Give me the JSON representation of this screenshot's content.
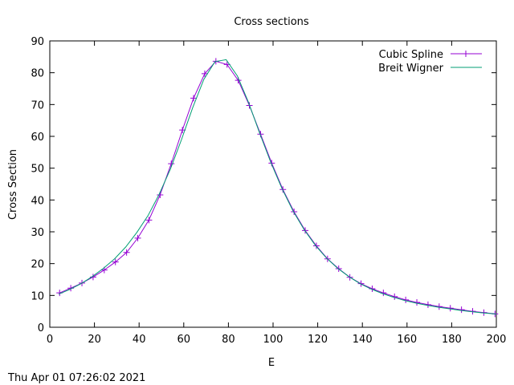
{
  "chart_data": {
    "type": "line",
    "title": "Cross sections",
    "xlabel": "E",
    "ylabel": "Cross Section",
    "xlim": [
      0,
      200
    ],
    "ylim": [
      0,
      90
    ],
    "xticks": [
      0,
      20,
      40,
      60,
      80,
      100,
      120,
      140,
      160,
      180,
      200
    ],
    "yticks": [
      0,
      10,
      20,
      30,
      40,
      50,
      60,
      70,
      80,
      90
    ],
    "grid": false,
    "legend_position": "top-right",
    "series": [
      {
        "name": "Cubic Spline",
        "color": "#9400d3",
        "marker": "plus",
        "x": [
          4.4,
          9.4,
          14.4,
          19.4,
          24.4,
          29.4,
          34.4,
          39.4,
          44.4,
          49.4,
          54.4,
          59.4,
          64.4,
          69.4,
          74.4,
          79.4,
          84.4,
          89.4,
          94.4,
          99.4,
          104.4,
          109.4,
          114.4,
          119.4,
          124.4,
          129.4,
          134.4,
          139.4,
          144.4,
          149.4,
          154.4,
          159.4,
          164.4,
          169.4,
          174.4,
          179.4,
          184.4,
          189.4,
          194.4,
          199.4
        ],
        "y": [
          10.8,
          12.3,
          13.9,
          15.8,
          18.0,
          20.5,
          23.5,
          28.0,
          33.7,
          41.6,
          51.4,
          62.0,
          72.0,
          79.7,
          83.6,
          82.6,
          77.6,
          69.7,
          60.7,
          51.6,
          43.3,
          36.3,
          30.4,
          25.6,
          21.5,
          18.4,
          15.7,
          13.7,
          12.1,
          10.8,
          9.6,
          8.6,
          7.8,
          7.1,
          6.5,
          6.0,
          5.5,
          5.0,
          4.6,
          4.2
        ]
      },
      {
        "name": "Breit Wigner",
        "color": "#009e73",
        "marker": "none",
        "x": [
          4,
          9,
          14,
          19,
          24,
          29,
          34,
          39,
          44,
          49,
          54,
          59,
          64,
          69,
          74,
          79,
          84,
          89,
          94,
          99,
          104,
          109,
          114,
          119,
          124,
          129,
          134,
          139,
          144,
          149,
          154,
          159,
          164,
          169,
          174,
          179,
          184,
          189,
          194,
          199,
          200
        ],
        "y": [
          10.4,
          11.9,
          13.7,
          15.9,
          18.5,
          21.5,
          25.2,
          29.8,
          35.1,
          41.8,
          49.7,
          59.0,
          69.0,
          77.9,
          83.5,
          84.1,
          79.0,
          70.7,
          61.0,
          51.8,
          43.6,
          36.5,
          30.6,
          25.7,
          21.7,
          18.5,
          15.9,
          13.7,
          12.0,
          10.6,
          9.4,
          8.4,
          7.6,
          6.9,
          6.3,
          5.8,
          5.3,
          4.9,
          4.5,
          4.2,
          4.1
        ]
      }
    ]
  },
  "footer": {
    "timestamp": "Thu Apr 01 07:26:02 2021"
  }
}
